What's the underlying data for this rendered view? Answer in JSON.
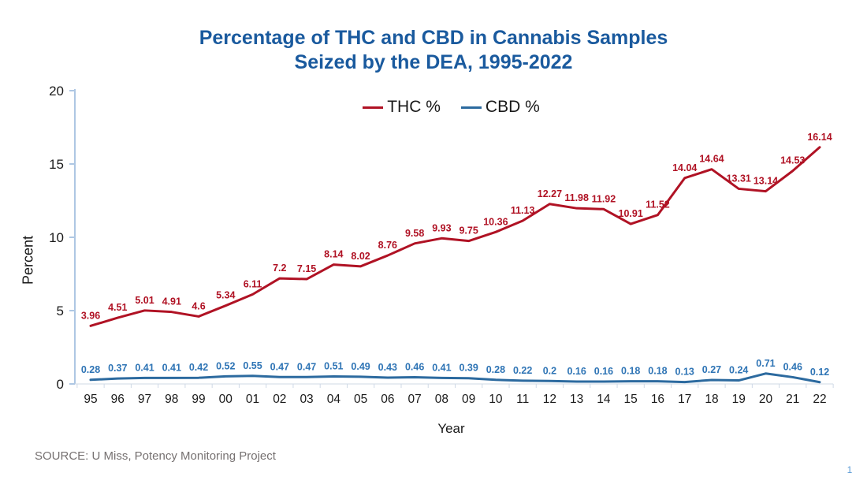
{
  "header": {
    "title_line1": "Percentage of THC and CBD in Cannabis Samples",
    "title_line2": "Seized by the DEA, 1995-2022"
  },
  "footer": {
    "source": "SOURCE: U Miss, Potency Monitoring Project",
    "page_number": "1"
  },
  "colors": {
    "title": "#1A5A9E",
    "thc_line": "#B01224",
    "cbd_line": "#2C6A9F",
    "cbd_label": "#2E74B5",
    "axis_line": "#AEC7E3",
    "x_axis_line": "#CFD9E6",
    "tick_text": "#1a1a1a",
    "source_text": "#767171",
    "page_number": "#5B9BD5"
  },
  "chart_data": {
    "type": "line",
    "title": "Percentage of THC and CBD in Cannabis Samples Seized by the DEA, 1995-2022",
    "xlabel": "Year",
    "ylabel": "Percent",
    "ylim": [
      0,
      20
    ],
    "yticks": [
      0,
      5,
      10,
      15,
      20
    ],
    "grid": false,
    "legend_position": "top-center",
    "x": [
      "95",
      "96",
      "97",
      "98",
      "99",
      "00",
      "01",
      "02",
      "03",
      "04",
      "05",
      "06",
      "07",
      "08",
      "09",
      "10",
      "11",
      "12",
      "13",
      "14",
      "15",
      "16",
      "17",
      "18",
      "19",
      "20",
      "21",
      "22"
    ],
    "series": [
      {
        "name": "THC %",
        "color": "#B01224",
        "label_color": "#B01224",
        "values": [
          3.96,
          4.51,
          5.01,
          4.91,
          4.6,
          5.34,
          6.11,
          7.2,
          7.15,
          8.14,
          8.02,
          8.76,
          9.58,
          9.93,
          9.75,
          10.36,
          11.13,
          12.27,
          11.98,
          11.92,
          10.91,
          11.52,
          14.04,
          14.64,
          13.31,
          13.14,
          14.53,
          16.14
        ]
      },
      {
        "name": "CBD %",
        "color": "#2C6A9F",
        "label_color": "#2E74B5",
        "values": [
          0.28,
          0.37,
          0.41,
          0.41,
          0.42,
          0.52,
          0.55,
          0.47,
          0.47,
          0.51,
          0.49,
          0.43,
          0.46,
          0.41,
          0.39,
          0.28,
          0.22,
          0.2,
          0.16,
          0.16,
          0.18,
          0.18,
          0.13,
          0.27,
          0.24,
          0.71,
          0.46,
          0.12
        ]
      }
    ]
  }
}
